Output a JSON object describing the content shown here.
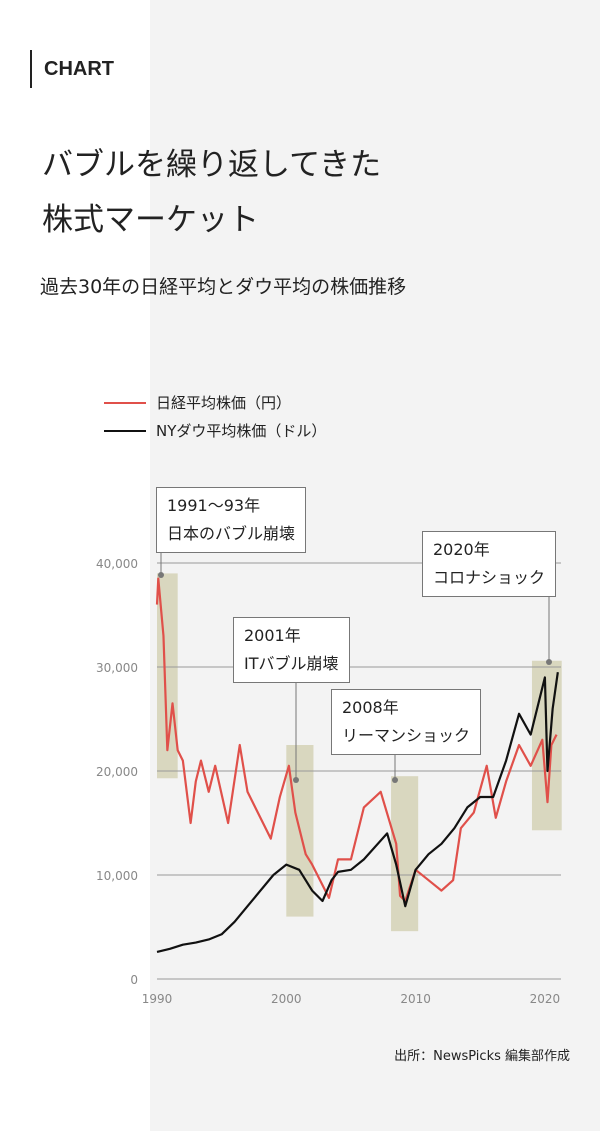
{
  "tag": "CHART",
  "title_lines": [
    "バブルを繰り返してきた",
    "株式マーケット"
  ],
  "subtitle": "過去30年の日経平均とダウ平均の株価推移",
  "source": "出所：NewsPicks 編集部作成",
  "chart_data": {
    "type": "line",
    "xlim": [
      1990,
      2021
    ],
    "ylim": [
      0,
      40000
    ],
    "x_ticks": [
      "1990",
      "2000",
      "2010",
      "2020"
    ],
    "y_ticks": [
      "0",
      "10,000",
      "20,000",
      "30,000",
      "40,000"
    ],
    "series": [
      {
        "name": "日経平均株価（円）",
        "color": "#e0504a",
        "points": [
          [
            1990,
            36000
          ],
          [
            1990.1,
            38500
          ],
          [
            1990.5,
            33000
          ],
          [
            1990.8,
            22000
          ],
          [
            1991.2,
            26500
          ],
          [
            1991.6,
            22000
          ],
          [
            1992,
            21000
          ],
          [
            1992.6,
            15000
          ],
          [
            1993,
            19000
          ],
          [
            1993.4,
            21000
          ],
          [
            1994,
            18000
          ],
          [
            1994.5,
            20500
          ],
          [
            1995.5,
            15000
          ],
          [
            1996.4,
            22500
          ],
          [
            1997,
            18000
          ],
          [
            1997.8,
            16000
          ],
          [
            1998.8,
            13500
          ],
          [
            1999.5,
            17500
          ],
          [
            2000.2,
            20500
          ],
          [
            2000.7,
            16000
          ],
          [
            2001.5,
            12000
          ],
          [
            2002,
            11000
          ],
          [
            2003.3,
            7800
          ],
          [
            2004,
            11500
          ],
          [
            2005,
            11500
          ],
          [
            2006,
            16500
          ],
          [
            2007.3,
            18000
          ],
          [
            2007.9,
            15500
          ],
          [
            2008.5,
            13000
          ],
          [
            2008.8,
            8000
          ],
          [
            2009.2,
            7500
          ],
          [
            2010,
            10500
          ],
          [
            2011,
            9500
          ],
          [
            2012,
            8500
          ],
          [
            2012.9,
            9500
          ],
          [
            2013.5,
            14500
          ],
          [
            2014.5,
            16000
          ],
          [
            2015.5,
            20500
          ],
          [
            2016.2,
            15500
          ],
          [
            2017,
            19000
          ],
          [
            2018,
            22500
          ],
          [
            2018.9,
            20500
          ],
          [
            2019.8,
            23000
          ],
          [
            2020.2,
            17000
          ],
          [
            2020.5,
            22500
          ],
          [
            2020.9,
            23500
          ]
        ]
      },
      {
        "name": "NYダウ平均株価（ドル）",
        "color": "#111111",
        "points": [
          [
            1990,
            2600
          ],
          [
            1991,
            2900
          ],
          [
            1992,
            3300
          ],
          [
            1993,
            3500
          ],
          [
            1994,
            3800
          ],
          [
            1995,
            4300
          ],
          [
            1996,
            5500
          ],
          [
            1997,
            7000
          ],
          [
            1998,
            8500
          ],
          [
            1999,
            10000
          ],
          [
            2000,
            11000
          ],
          [
            2001,
            10500
          ],
          [
            2002,
            8500
          ],
          [
            2002.8,
            7500
          ],
          [
            2003.5,
            9500
          ],
          [
            2004,
            10300
          ],
          [
            2005,
            10500
          ],
          [
            2006,
            11500
          ],
          [
            2007.8,
            14000
          ],
          [
            2008.5,
            11000
          ],
          [
            2009.2,
            7000
          ],
          [
            2010,
            10500
          ],
          [
            2011,
            12000
          ],
          [
            2012,
            13000
          ],
          [
            2013,
            14500
          ],
          [
            2014,
            16500
          ],
          [
            2015,
            17500
          ],
          [
            2016,
            17500
          ],
          [
            2017,
            21000
          ],
          [
            2018,
            25500
          ],
          [
            2018.9,
            23500
          ],
          [
            2019.5,
            26500
          ],
          [
            2020,
            29000
          ],
          [
            2020.2,
            20000
          ],
          [
            2020.6,
            26000
          ],
          [
            2021,
            29500
          ]
        ]
      }
    ],
    "highlights": [
      [
        1990,
        1991.6,
        19300,
        39000
      ],
      [
        2000,
        2002.1,
        6000,
        22500
      ],
      [
        2008.1,
        2010.2,
        4600,
        19500
      ],
      [
        2019,
        2021.3,
        14300,
        30600
      ]
    ],
    "annotations": [
      {
        "year": "1991～93年",
        "label": "日本のバブル崩壊"
      },
      {
        "year": "2001年",
        "label": "ITバブル崩壊"
      },
      {
        "year": "2008年",
        "label": "リーマンショック"
      },
      {
        "year": "2020年",
        "label": "コロナショック"
      }
    ]
  }
}
